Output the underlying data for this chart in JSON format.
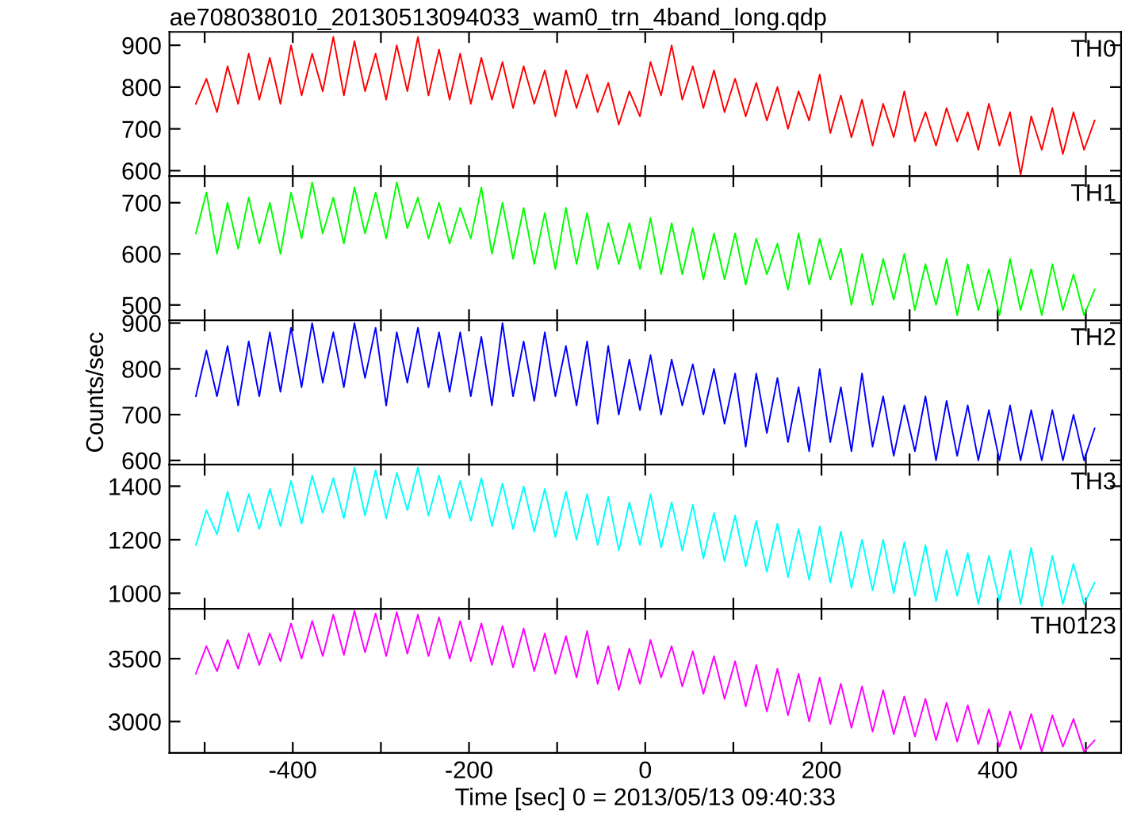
{
  "chart_data": [
    {
      "type": "line",
      "title": "ae708038010_20130513094033_wam0_trn_4band_long.qdp",
      "tick_labels": "y",
      "grid": false,
      "legend": false,
      "x": [
        -510,
        -498,
        -486,
        -474,
        -462,
        -450,
        -438,
        -426,
        -414,
        -402,
        -390,
        -378,
        -366,
        -354,
        -342,
        -330,
        -318,
        -306,
        -294,
        -282,
        -270,
        -258,
        -246,
        -234,
        -222,
        -210,
        -198,
        -186,
        -174,
        -162,
        -150,
        -138,
        -126,
        -114,
        -102,
        -90,
        -78,
        -66,
        -54,
        -42,
        -30,
        -18,
        -6,
        6,
        18,
        30,
        42,
        54,
        66,
        78,
        90,
        102,
        114,
        126,
        138,
        150,
        162,
        174,
        186,
        198,
        210,
        222,
        234,
        246,
        258,
        270,
        282,
        294,
        306,
        318,
        330,
        342,
        354,
        366,
        378,
        390,
        402,
        414,
        426,
        438,
        450,
        462,
        474,
        486,
        498,
        510
      ],
      "xlim": [
        -540,
        540
      ],
      "xticks": [
        {
          "value": -500,
          "label": null
        },
        -400,
        {
          "value": -300,
          "label": null
        },
        -200,
        {
          "value": -100,
          "label": null
        },
        0,
        {
          "value": 100,
          "label": null
        },
        200,
        {
          "value": 300,
          "label": null
        },
        400,
        {
          "value": 500,
          "label": null
        }
      ],
      "ylim": [
        587,
        932
      ],
      "yticks": [
        600,
        700,
        800,
        900
      ],
      "series": [
        {
          "name": "TH0",
          "color": "#ff0000",
          "values": [
            760,
            820,
            740,
            850,
            760,
            880,
            770,
            870,
            760,
            900,
            780,
            880,
            790,
            920,
            780,
            910,
            790,
            880,
            770,
            900,
            790,
            920,
            780,
            890,
            770,
            880,
            760,
            870,
            770,
            860,
            750,
            850,
            760,
            840,
            730,
            840,
            750,
            830,
            740,
            810,
            710,
            790,
            730,
            860,
            780,
            900,
            770,
            850,
            750,
            840,
            740,
            820,
            730,
            810,
            720,
            800,
            700,
            790,
            720,
            830,
            690,
            780,
            680,
            770,
            660,
            760,
            680,
            790,
            670,
            740,
            660,
            750,
            670,
            740,
            650,
            760,
            660,
            740,
            590,
            730,
            650,
            750,
            640,
            740,
            650,
            720
          ]
        }
      ]
    },
    {
      "type": "line",
      "tick_labels": "y",
      "grid": false,
      "legend": false,
      "x": [
        -510,
        -498,
        -486,
        -474,
        -462,
        -450,
        -438,
        -426,
        -414,
        -402,
        -390,
        -378,
        -366,
        -354,
        -342,
        -330,
        -318,
        -306,
        -294,
        -282,
        -270,
        -258,
        -246,
        -234,
        -222,
        -210,
        -198,
        -186,
        -174,
        -162,
        -150,
        -138,
        -126,
        -114,
        -102,
        -90,
        -78,
        -66,
        -54,
        -42,
        -30,
        -18,
        -6,
        6,
        18,
        30,
        42,
        54,
        66,
        78,
        90,
        102,
        114,
        126,
        138,
        150,
        162,
        174,
        186,
        198,
        210,
        222,
        234,
        246,
        258,
        270,
        282,
        294,
        306,
        318,
        330,
        342,
        354,
        366,
        378,
        390,
        402,
        414,
        426,
        438,
        450,
        462,
        474,
        486,
        498,
        510
      ],
      "xlim": [
        -540,
        540
      ],
      "xticks": [
        {
          "value": -500,
          "label": null
        },
        -400,
        {
          "value": -300,
          "label": null
        },
        -200,
        {
          "value": -100,
          "label": null
        },
        0,
        {
          "value": 100,
          "label": null
        },
        200,
        {
          "value": 300,
          "label": null
        },
        400,
        {
          "value": 500,
          "label": null
        }
      ],
      "ylim": [
        470,
        752
      ],
      "yticks": [
        500,
        600,
        700
      ],
      "series": [
        {
          "name": "TH1",
          "color": "#00ff00",
          "values": [
            640,
            720,
            600,
            700,
            610,
            710,
            620,
            700,
            600,
            720,
            630,
            740,
            640,
            710,
            620,
            730,
            640,
            720,
            630,
            740,
            650,
            710,
            630,
            700,
            620,
            690,
            630,
            730,
            600,
            700,
            590,
            690,
            580,
            680,
            570,
            690,
            580,
            680,
            570,
            660,
            580,
            660,
            570,
            670,
            560,
            660,
            560,
            650,
            550,
            640,
            550,
            640,
            540,
            630,
            560,
            620,
            530,
            640,
            540,
            630,
            550,
            610,
            500,
            600,
            500,
            590,
            510,
            600,
            490,
            580,
            500,
            590,
            480,
            580,
            490,
            570,
            480,
            590,
            490,
            570,
            480,
            580,
            490,
            560,
            480,
            530
          ]
        }
      ]
    },
    {
      "type": "line",
      "ylabel": "Counts/sec",
      "tick_labels": "y",
      "grid": false,
      "legend": false,
      "x": [
        -510,
        -498,
        -486,
        -474,
        -462,
        -450,
        -438,
        -426,
        -414,
        -402,
        -390,
        -378,
        -366,
        -354,
        -342,
        -330,
        -318,
        -306,
        -294,
        -282,
        -270,
        -258,
        -246,
        -234,
        -222,
        -210,
        -198,
        -186,
        -174,
        -162,
        -150,
        -138,
        -126,
        -114,
        -102,
        -90,
        -78,
        -66,
        -54,
        -42,
        -30,
        -18,
        -6,
        6,
        18,
        30,
        42,
        54,
        66,
        78,
        90,
        102,
        114,
        126,
        138,
        150,
        162,
        174,
        186,
        198,
        210,
        222,
        234,
        246,
        258,
        270,
        282,
        294,
        306,
        318,
        330,
        342,
        354,
        366,
        378,
        390,
        402,
        414,
        426,
        438,
        450,
        462,
        474,
        486,
        498,
        510
      ],
      "xlim": [
        -540,
        540
      ],
      "xticks": [
        {
          "value": -500,
          "label": null
        },
        -400,
        {
          "value": -300,
          "label": null
        },
        -200,
        {
          "value": -100,
          "label": null
        },
        0,
        {
          "value": 100,
          "label": null
        },
        200,
        {
          "value": 300,
          "label": null
        },
        400,
        {
          "value": 500,
          "label": null
        }
      ],
      "ylim": [
        591,
        906
      ],
      "yticks": [
        600,
        700,
        800,
        900
      ],
      "series": [
        {
          "name": "TH2",
          "color": "#0000ff",
          "values": [
            740,
            840,
            740,
            850,
            720,
            860,
            740,
            880,
            750,
            890,
            760,
            900,
            770,
            880,
            760,
            900,
            780,
            890,
            720,
            880,
            770,
            890,
            760,
            880,
            750,
            880,
            740,
            870,
            720,
            900,
            740,
            860,
            730,
            880,
            740,
            850,
            720,
            860,
            680,
            850,
            700,
            820,
            710,
            830,
            700,
            820,
            720,
            810,
            700,
            800,
            680,
            790,
            630,
            790,
            660,
            780,
            640,
            760,
            620,
            800,
            640,
            760,
            620,
            790,
            630,
            740,
            610,
            720,
            620,
            740,
            600,
            730,
            610,
            720,
            600,
            710,
            600,
            720,
            600,
            710,
            600,
            710,
            600,
            700,
            600,
            670
          ]
        }
      ]
    },
    {
      "type": "line",
      "tick_labels": "y",
      "grid": false,
      "legend": false,
      "x": [
        -510,
        -498,
        -486,
        -474,
        -462,
        -450,
        -438,
        -426,
        -414,
        -402,
        -390,
        -378,
        -366,
        -354,
        -342,
        -330,
        -318,
        -306,
        -294,
        -282,
        -270,
        -258,
        -246,
        -234,
        -222,
        -210,
        -198,
        -186,
        -174,
        -162,
        -150,
        -138,
        -126,
        -114,
        -102,
        -90,
        -78,
        -66,
        -54,
        -42,
        -30,
        -18,
        -6,
        6,
        18,
        30,
        42,
        54,
        66,
        78,
        90,
        102,
        114,
        126,
        138,
        150,
        162,
        174,
        186,
        198,
        210,
        222,
        234,
        246,
        258,
        270,
        282,
        294,
        306,
        318,
        330,
        342,
        354,
        366,
        378,
        390,
        402,
        414,
        426,
        438,
        450,
        462,
        474,
        486,
        498,
        510
      ],
      "xlim": [
        -540,
        540
      ],
      "xticks": [
        {
          "value": -500,
          "label": null
        },
        -400,
        {
          "value": -300,
          "label": null
        },
        -200,
        {
          "value": -100,
          "label": null
        },
        0,
        {
          "value": 100,
          "label": null
        },
        200,
        {
          "value": 300,
          "label": null
        },
        400,
        {
          "value": 500,
          "label": null
        }
      ],
      "ylim": [
        942,
        1481
      ],
      "yticks": [
        1000,
        1200,
        1400
      ],
      "series": [
        {
          "name": "TH3",
          "color": "#00ffff",
          "values": [
            1180,
            1310,
            1220,
            1380,
            1230,
            1370,
            1240,
            1390,
            1250,
            1420,
            1260,
            1440,
            1300,
            1430,
            1280,
            1470,
            1290,
            1460,
            1280,
            1450,
            1310,
            1470,
            1290,
            1440,
            1280,
            1420,
            1270,
            1430,
            1250,
            1410,
            1240,
            1400,
            1230,
            1390,
            1210,
            1380,
            1200,
            1370,
            1180,
            1360,
            1160,
            1340,
            1180,
            1370,
            1170,
            1340,
            1160,
            1330,
            1130,
            1300,
            1120,
            1290,
            1100,
            1270,
            1080,
            1260,
            1060,
            1240,
            1050,
            1250,
            1040,
            1230,
            1020,
            1200,
            1010,
            1200,
            1000,
            1190,
            990,
            1180,
            970,
            1160,
            990,
            1150,
            960,
            1140,
            970,
            1160,
            960,
            1170,
            950,
            1140,
            960,
            1110,
            960,
            1040
          ]
        }
      ]
    },
    {
      "type": "line",
      "xlabel": "Time [sec] 0 = 2013/05/13 09:40:33",
      "grid": false,
      "legend": false,
      "x": [
        -510,
        -498,
        -486,
        -474,
        -462,
        -450,
        -438,
        -426,
        -414,
        -402,
        -390,
        -378,
        -366,
        -354,
        -342,
        -330,
        -318,
        -306,
        -294,
        -282,
        -270,
        -258,
        -246,
        -234,
        -222,
        -210,
        -198,
        -186,
        -174,
        -162,
        -150,
        -138,
        -126,
        -114,
        -102,
        -90,
        -78,
        -66,
        -54,
        -42,
        -30,
        -18,
        -6,
        6,
        18,
        30,
        42,
        54,
        66,
        78,
        90,
        102,
        114,
        126,
        138,
        150,
        162,
        174,
        186,
        198,
        210,
        222,
        234,
        246,
        258,
        270,
        282,
        294,
        306,
        318,
        330,
        342,
        354,
        366,
        378,
        390,
        402,
        414,
        426,
        438,
        450,
        462,
        474,
        486,
        498,
        510
      ],
      "xlim": [
        -540,
        540
      ],
      "xticks": [
        {
          "value": -500,
          "label": null
        },
        -400,
        {
          "value": -300,
          "label": null
        },
        -200,
        {
          "value": -100,
          "label": null
        },
        0,
        {
          "value": 100,
          "label": null
        },
        200,
        {
          "value": 300,
          "label": null
        },
        400,
        {
          "value": 500,
          "label": null
        }
      ],
      "ylim": [
        2750,
        3897
      ],
      "yticks": [
        3000,
        3500
      ],
      "series": [
        {
          "name": "TH0123",
          "color": "#ff00ff",
          "values": [
            3380,
            3600,
            3400,
            3650,
            3420,
            3700,
            3450,
            3700,
            3480,
            3780,
            3500,
            3800,
            3520,
            3850,
            3530,
            3880,
            3550,
            3860,
            3520,
            3870,
            3540,
            3850,
            3520,
            3830,
            3500,
            3800,
            3480,
            3780,
            3450,
            3760,
            3430,
            3740,
            3400,
            3700,
            3380,
            3680,
            3350,
            3720,
            3300,
            3600,
            3250,
            3580,
            3300,
            3650,
            3350,
            3600,
            3280,
            3560,
            3220,
            3520,
            3180,
            3480,
            3120,
            3450,
            3080,
            3420,
            3050,
            3380,
            3000,
            3350,
            2980,
            3300,
            2950,
            3280,
            2920,
            3250,
            2900,
            3200,
            2880,
            3180,
            2850,
            3150,
            2840,
            3130,
            2820,
            3100,
            2800,
            3080,
            2780,
            3060,
            2760,
            3050,
            2800,
            3020,
            2760,
            2850
          ]
        }
      ]
    }
  ]
}
